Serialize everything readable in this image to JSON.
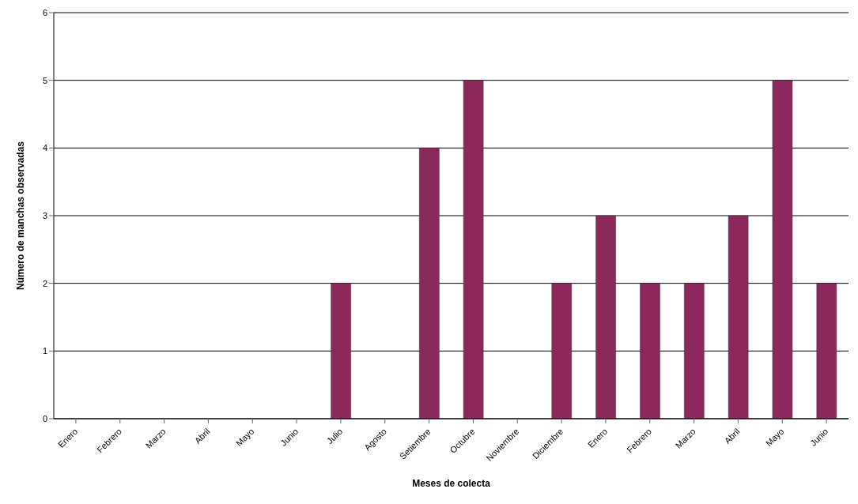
{
  "chart_data": {
    "type": "bar",
    "xlabel": "Meses de colecta",
    "ylabel": "Número de manchas observadas",
    "categories": [
      "Enero",
      "Febrero",
      "Marzo",
      "Abril",
      "Mayo",
      "Junio",
      "Julio",
      "Agosto",
      "Setiembre",
      "Octubre",
      "Noviembre",
      "Diciembre",
      "Enero",
      "Febrero",
      "Marzo",
      "Abril",
      "Mayo",
      "Junio"
    ],
    "values": [
      0,
      0,
      0,
      0,
      0,
      0,
      2,
      0,
      4,
      5,
      0,
      2,
      3,
      2,
      2,
      3,
      5,
      2
    ],
    "color": "#8b2a5a",
    "ylim": [
      0,
      6
    ],
    "yticks": [
      0,
      1,
      2,
      3,
      4,
      5,
      6
    ],
    "grid": "y"
  }
}
